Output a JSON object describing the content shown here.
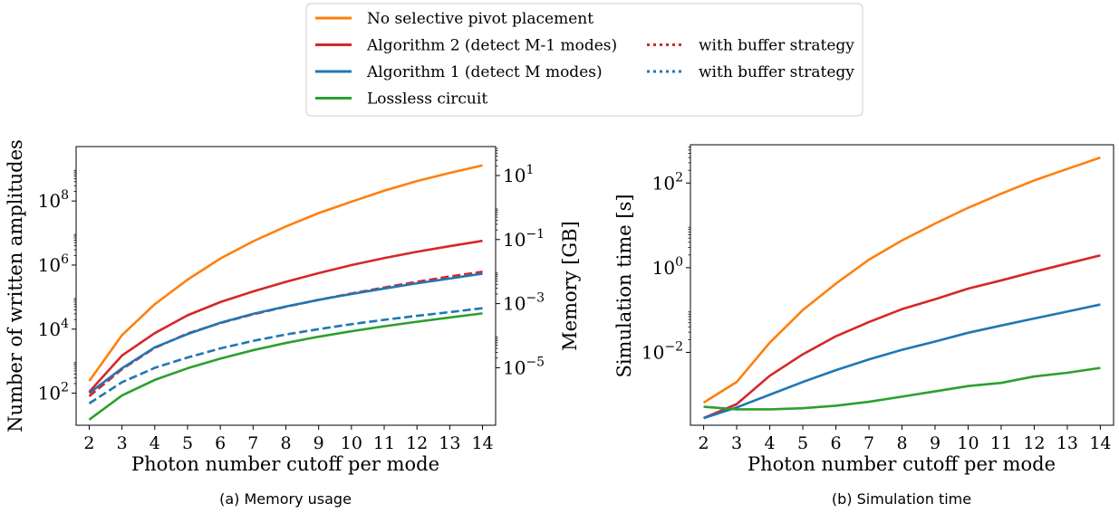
{
  "colors": {
    "no_pivot": "#ff7f0e",
    "alg2": "#d62728",
    "alg1": "#1f77b4",
    "lossless": "#2ca02c"
  },
  "legend": {
    "entries": [
      {
        "label": "No selective pivot placement",
        "color": "#ff7f0e",
        "style": "solid"
      },
      {
        "label": "Algorithm 2 (detect M-1 modes)",
        "color": "#d62728",
        "style": "solid"
      },
      {
        "label": "Algorithm 1 (detect M modes)",
        "color": "#1f77b4",
        "style": "solid"
      },
      {
        "label": "Lossless circuit",
        "color": "#2ca02c",
        "style": "solid"
      },
      {
        "label": "with buffer strategy",
        "color": "#d62728",
        "style": "dotted"
      },
      {
        "label": "with buffer strategy",
        "color": "#1f77b4",
        "style": "dotted"
      }
    ]
  },
  "chart_data": [
    {
      "type": "line",
      "caption": "(a) Memory usage",
      "xlabel": "Photon number cutoff per mode",
      "ylabel": "Number of written amplitudes",
      "y2label": "Memory [GB]",
      "yscale": "log",
      "y2scale": "log",
      "xlim": [
        1.6,
        14.4
      ],
      "ylim": [
        10,
        5000000000
      ],
      "y2lim": [
        1.6e-07,
        80
      ],
      "x": [
        2,
        3,
        4,
        5,
        6,
        7,
        8,
        9,
        10,
        11,
        12,
        13,
        14
      ],
      "x_ticks": [
        "2",
        "3",
        "4",
        "5",
        "6",
        "7",
        "8",
        "9",
        "10",
        "11",
        "12",
        "13",
        "14"
      ],
      "y_ticks": [
        {
          "exp": "2",
          "value": 100
        },
        {
          "exp": "4",
          "value": 10000
        },
        {
          "exp": "6",
          "value": 1000000
        },
        {
          "exp": "8",
          "value": 100000000
        }
      ],
      "y2_ticks": [
        {
          "exp": "−5",
          "value": 1e-05
        },
        {
          "exp": "−3",
          "value": 0.001
        },
        {
          "exp": "−1",
          "value": 0.1
        },
        {
          "exp": "1",
          "value": 10
        }
      ],
      "series": [
        {
          "name": "No selective pivot placement",
          "color": "#ff7f0e",
          "style": "solid",
          "values": [
            240,
            6500,
            60000,
            350000,
            1600000,
            5500000,
            16000000,
            42000000,
            95000000,
            210000000,
            420000000,
            750000000,
            1300000000
          ]
        },
        {
          "name": "Algorithm 2 (detect M-1 modes)",
          "color": "#d62728",
          "style": "solid",
          "values": [
            110,
            1500,
            7500,
            27000,
            70000,
            150000,
            300000,
            560000,
            1000000,
            1650000,
            2600000,
            3900000,
            5700000
          ]
        },
        {
          "name": "with buffer strategy",
          "color": "#d62728",
          "style": "dashed",
          "values": [
            80,
            560,
            2600,
            7300,
            15500,
            29000,
            50000,
            82000,
            130000,
            200000,
            300000,
            440000,
            620000
          ]
        },
        {
          "name": "Algorithm 1 (detect M modes)",
          "color": "#1f77b4",
          "style": "solid",
          "values": [
            100,
            600,
            2700,
            7000,
            15800,
            30000,
            51000,
            82000,
            125000,
            185000,
            270000,
            380000,
            540000
          ]
        },
        {
          "name": "with buffer strategy",
          "color": "#1f77b4",
          "style": "dashed",
          "values": [
            48,
            220,
            620,
            1300,
            2500,
            4300,
            6800,
            10000,
            14300,
            19500,
            26000,
            34000,
            45000
          ]
        },
        {
          "name": "Lossless circuit",
          "color": "#2ca02c",
          "style": "solid",
          "values": [
            15,
            85,
            260,
            600,
            1200,
            2200,
            3700,
            5800,
            8600,
            12300,
            17000,
            23000,
            31000
          ]
        }
      ]
    },
    {
      "type": "line",
      "caption": "(b) Simulation time",
      "xlabel": "Photon number cutoff per mode",
      "ylabel": "Simulation time [s]",
      "yscale": "log",
      "xlim": [
        1.6,
        14.4
      ],
      "ylim": [
        0.00019,
        800
      ],
      "x": [
        2,
        3,
        4,
        5,
        6,
        7,
        8,
        9,
        10,
        11,
        12,
        13,
        14
      ],
      "x_ticks": [
        "2",
        "3",
        "4",
        "5",
        "6",
        "7",
        "8",
        "9",
        "10",
        "11",
        "12",
        "13",
        "14"
      ],
      "y_ticks": [
        {
          "exp": "−2",
          "value": 0.01
        },
        {
          "exp": "0",
          "value": 1
        },
        {
          "exp": "2",
          "value": 100
        }
      ],
      "series": [
        {
          "name": "No selective pivot placement",
          "color": "#ff7f0e",
          "style": "solid",
          "values": [
            0.00065,
            0.002,
            0.017,
            0.1,
            0.42,
            1.55,
            4.4,
            11,
            26,
            56,
            115,
            215,
            400
          ]
        },
        {
          "name": "Algorithm 2 (detect M-1 modes)",
          "color": "#d62728",
          "style": "solid",
          "values": [
            0.00028,
            0.0006,
            0.0028,
            0.009,
            0.024,
            0.052,
            0.105,
            0.18,
            0.32,
            0.5,
            0.8,
            1.25,
            1.95
          ]
        },
        {
          "name": "Algorithm 1 (detect M modes)",
          "color": "#1f77b4",
          "style": "solid",
          "values": [
            0.00028,
            0.0005,
            0.001,
            0.002,
            0.0038,
            0.0068,
            0.0115,
            0.018,
            0.029,
            0.043,
            0.063,
            0.092,
            0.135
          ]
        },
        {
          "name": "Lossless circuit",
          "color": "#2ca02c",
          "style": "solid",
          "values": [
            0.00052,
            0.00045,
            0.00045,
            0.00048,
            0.00055,
            0.00068,
            0.0009,
            0.0012,
            0.0016,
            0.0019,
            0.0027,
            0.0033,
            0.0043
          ]
        }
      ]
    }
  ]
}
